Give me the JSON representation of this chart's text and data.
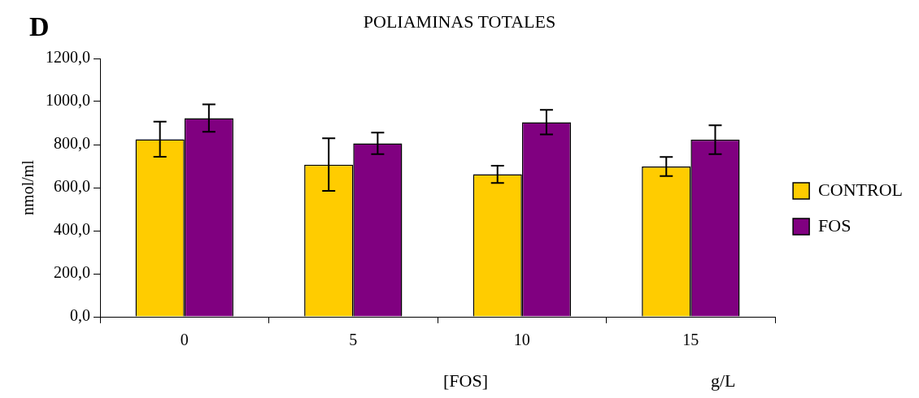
{
  "chart_data": {
    "type": "bar",
    "title": "POLIAMINAS TOTALES",
    "xlabel": "[FOS]",
    "ylabel": "nmol/ml",
    "annotations": [
      "D",
      "g/L"
    ],
    "categories": [
      "0",
      "5",
      "10",
      "15"
    ],
    "series": [
      {
        "name": "CONTROL",
        "color": "#ffcc00",
        "values": [
          825,
          707,
          662,
          698
        ],
        "errors": [
          82,
          122,
          40,
          44
        ]
      },
      {
        "name": "FOS",
        "color": "#800080",
        "values": [
          923,
          806,
          904,
          823
        ],
        "errors": [
          64,
          50,
          57,
          67
        ]
      }
    ],
    "ylim": [
      0,
      1200
    ],
    "yticks": [
      {
        "value": 0,
        "label": "0,0"
      },
      {
        "value": 200,
        "label": "200,0"
      },
      {
        "value": 400,
        "label": "400,0"
      },
      {
        "value": 600,
        "label": "600,0"
      },
      {
        "value": 800,
        "label": "800,0"
      },
      {
        "value": 1000,
        "label": "1000,0"
      },
      {
        "value": 1200,
        "label": "1200,0"
      }
    ],
    "grid": false,
    "legend": "right"
  }
}
